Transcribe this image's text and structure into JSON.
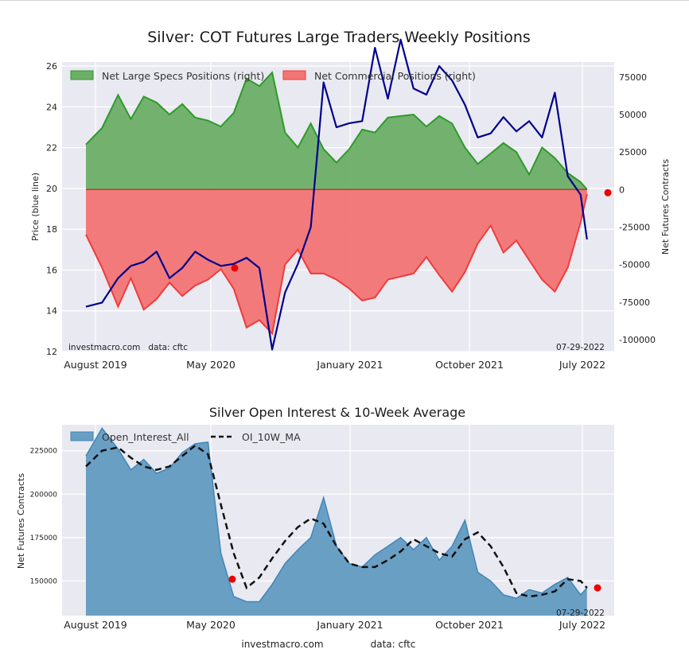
{
  "page": {
    "main_title": "Silver: COT Futures Large Traders Weekly Positions",
    "footer_site": "investmacro.com",
    "footer_data": "data: cftc"
  },
  "colors": {
    "plot_bg": "#e9e9f1",
    "grid": "#ffffff",
    "spec_fill": "#6caf66",
    "spec_line": "#2e9a2a",
    "comm_fill": "#f27474",
    "comm_line": "#ef3b3b",
    "price_line": "#00008b",
    "oi_fill": "#6a9fc4",
    "oi_line": "#3f86b8",
    "ma_line": "#111111",
    "marker": "#ee0000"
  },
  "chart_data": [
    {
      "type": "area",
      "title": "Silver: COT Futures Large Traders Weekly Positions",
      "xlabel": "",
      "ylabel_left": "Price (blue line)",
      "ylabel_right": "Net Futures Contracts",
      "x_tick_labels": [
        "August 2019",
        "May 2020",
        "January 2021",
        "October 2021",
        "July 2022"
      ],
      "y_left_ticks": [
        "12",
        "14",
        "16",
        "18",
        "20",
        "22",
        "24",
        "26"
      ],
      "y_right_ticks": [
        "75000",
        "50000",
        "25000",
        "0",
        "-25000",
        "-50000",
        "-75000",
        "-100000"
      ],
      "y_left_range": [
        12,
        26.2
      ],
      "y_right_range": [
        -108000,
        85000
      ],
      "grid": true,
      "legend_position": "top-left",
      "legend": [
        "Net Large Specs Positions (right)",
        "Net Commercial Positions (right)"
      ],
      "annotation_left": "investmacro.com   data: cftc",
      "annotation_right": "07-29-2022",
      "x": [
        0,
        5,
        10,
        14,
        18,
        22,
        26,
        30,
        34,
        38,
        42,
        46,
        50,
        54,
        58,
        62,
        66,
        70,
        74,
        78,
        82,
        86,
        90,
        94,
        98,
        102,
        106,
        110,
        114,
        118,
        122,
        126,
        130,
        134,
        138,
        142,
        146,
        150,
        154,
        156
      ],
      "series": [
        {
          "name": "Net Large Specs Positions (right)",
          "values": [
            30000,
            41000,
            63000,
            47000,
            62000,
            58000,
            50000,
            57000,
            48000,
            46000,
            42000,
            51000,
            74000,
            69000,
            78000,
            38000,
            28000,
            44000,
            27000,
            18000,
            27000,
            40000,
            38000,
            48000,
            49000,
            50000,
            42000,
            49000,
            44000,
            28000,
            17000,
            24000,
            31000,
            25000,
            10000,
            28000,
            21000,
            11000,
            5000,
            0
          ]
        },
        {
          "name": "Net Commercial Positions (right)",
          "values": [
            -30000,
            -52000,
            -78000,
            -59000,
            -80000,
            -73000,
            -62000,
            -71000,
            -64000,
            -60000,
            -53000,
            -66000,
            -92000,
            -87000,
            -96000,
            -50000,
            -40000,
            -56000,
            -56000,
            -60000,
            -66000,
            -74000,
            -72000,
            -60000,
            -58000,
            -56000,
            -45000,
            -57000,
            -68000,
            -55000,
            -36000,
            -24000,
            -42000,
            -34000,
            -47000,
            -60000,
            -68000,
            -52000,
            -22000,
            -3000
          ]
        },
        {
          "name": "Price (blue line)",
          "values": [
            14.2,
            14.4,
            15.6,
            16.2,
            16.4,
            16.9,
            15.6,
            16.1,
            16.9,
            16.5,
            16.2,
            16.3,
            16.6,
            16.1,
            12.1,
            14.9,
            16.3,
            18.1,
            25.2,
            23.0,
            23.2,
            23.3,
            26.9,
            24.4,
            27.3,
            24.9,
            24.6,
            26.0,
            25.3,
            24.1,
            22.5,
            22.7,
            23.5,
            22.8,
            23.3,
            22.5,
            24.7,
            20.6,
            19.7,
            17.5
          ]
        }
      ],
      "last_point_marker": "last value (right end)"
    },
    {
      "type": "area",
      "title": "Silver Open Interest & 10-Week Average",
      "xlabel": "",
      "ylabel": "Net Futures Contracts",
      "x_tick_labels": [
        "August 2019",
        "May 2020",
        "January 2021",
        "October 2021",
        "July 2022"
      ],
      "y_ticks": [
        "225000",
        "200000",
        "175000",
        "150000"
      ],
      "y_range": [
        130000,
        240000
      ],
      "grid": true,
      "legend_position": "top-left",
      "legend": [
        "Open_Interest_All",
        "OI_10W_MA"
      ],
      "annotation_right": "07-29-2022",
      "x": [
        0,
        5,
        10,
        14,
        18,
        22,
        26,
        30,
        34,
        38,
        42,
        46,
        50,
        54,
        58,
        62,
        66,
        70,
        74,
        78,
        82,
        86,
        90,
        94,
        98,
        102,
        106,
        110,
        114,
        118,
        122,
        126,
        130,
        134,
        138,
        142,
        146,
        150,
        154,
        156
      ],
      "series": [
        {
          "name": "Open_Interest_All",
          "values": [
            222000,
            238000,
            226000,
            214000,
            220000,
            212000,
            215000,
            224000,
            229000,
            230000,
            166000,
            141000,
            138000,
            138000,
            148000,
            160000,
            168000,
            175000,
            198000,
            170000,
            160000,
            158000,
            165000,
            170000,
            175000,
            168000,
            175000,
            162000,
            170000,
            185000,
            155000,
            150000,
            142000,
            140000,
            145000,
            143000,
            148000,
            152000,
            142000,
            146000
          ]
        },
        {
          "name": "OI_10W_MA",
          "values": [
            216000,
            225000,
            227000,
            221000,
            216000,
            214000,
            216000,
            222000,
            228000,
            223000,
            194000,
            166000,
            146000,
            152000,
            163000,
            173000,
            181000,
            186000,
            183000,
            170000,
            160000,
            158000,
            158000,
            162000,
            167000,
            174000,
            170000,
            166000,
            164000,
            174000,
            178000,
            170000,
            158000,
            143000,
            141000,
            142000,
            144000,
            151000,
            150000,
            146000
          ]
        }
      ],
      "last_point_marker": "last value (right end)"
    }
  ]
}
